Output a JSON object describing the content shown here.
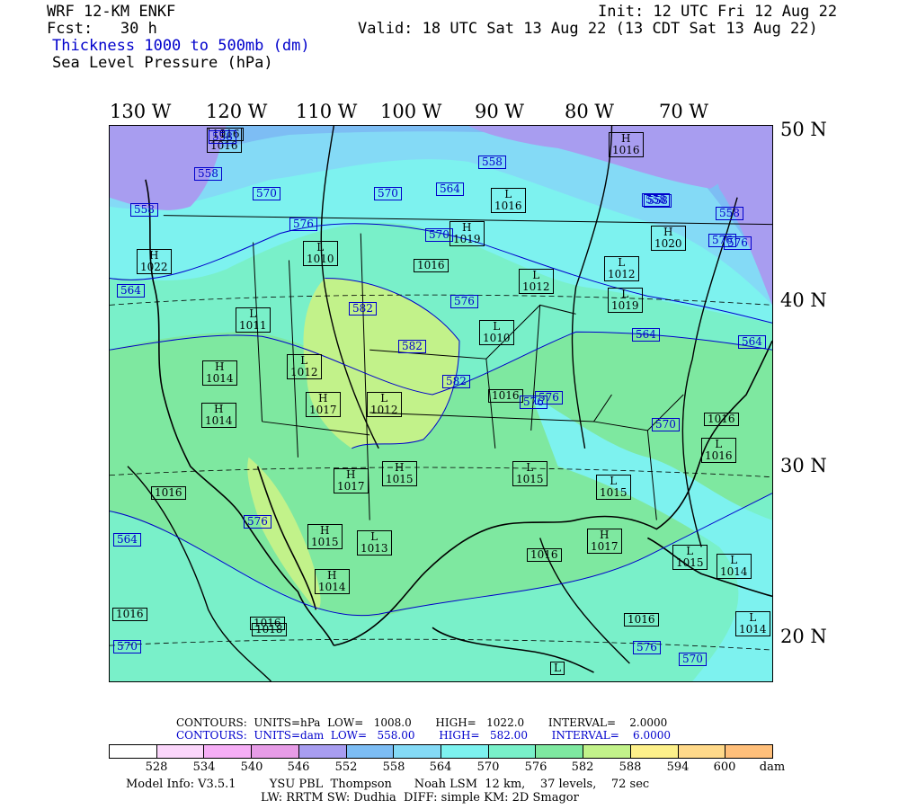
{
  "header": {
    "model": "WRF 12-KM ENKF",
    "fcst": "Fcst:   30 h",
    "thickness_title": "Thickness 1000 to 500mb (dm)",
    "slp_title": "Sea Level Pressure (hPa)",
    "init": "Init: 12 UTC Fri 12 Aug 22",
    "valid": "Valid: 18 UTC Sat 13 Aug 22 (13 CDT Sat 13 Aug 22)"
  },
  "axes": {
    "lon_labels": [
      "130 W",
      "120 W",
      "110 W",
      "100 W",
      "90 W",
      "80 W",
      "70 W"
    ],
    "lat_labels": [
      "50 N",
      "40 N",
      "30 N",
      "20 N"
    ]
  },
  "colors": {
    "c528": "#ffffff",
    "c534": "#fbd6fb",
    "c540": "#f6aef6",
    "c546": "#e79ce7",
    "c552": "#a89df0",
    "c558": "#7dbdf4",
    "c564": "#84daf6",
    "c570": "#7df2ef",
    "c576": "#79f0c9",
    "c582": "#7ee8a0",
    "c588": "#c2f28a",
    "c594": "#fdf08a",
    "c600": "#ffd98a",
    "c606": "#ffbf7a",
    "land_line": "#000000",
    "contour_blue": "#0000cc"
  },
  "pressure_centers": [
    {
      "type": "L",
      "value": "1016",
      "note": "NW"
    },
    {
      "type": "H",
      "value": "1022"
    },
    {
      "type": "L",
      "value": "1010"
    },
    {
      "type": "L",
      "value": "1011"
    },
    {
      "type": "H",
      "value": "1014"
    },
    {
      "type": "H",
      "value": "1014"
    },
    {
      "type": "L",
      "value": "1012"
    },
    {
      "type": "H",
      "value": "1017"
    },
    {
      "type": "L",
      "value": "1012"
    },
    {
      "type": "L",
      "value": "1012"
    },
    {
      "type": "H",
      "value": "1017"
    },
    {
      "type": "H",
      "value": "1015"
    },
    {
      "type": "H",
      "value": "1015"
    },
    {
      "type": "L",
      "value": "1013"
    },
    {
      "type": "H",
      "value": "1014"
    },
    {
      "type": "H",
      "value": "1016"
    },
    {
      "type": "L",
      "value": "1016"
    },
    {
      "type": "H",
      "value": "1019"
    },
    {
      "type": "L",
      "value": "1012"
    },
    {
      "type": "H",
      "value": "1020"
    },
    {
      "type": "L",
      "value": "1019"
    },
    {
      "type": "L",
      "value": "1010"
    },
    {
      "type": "L",
      "value": "1015"
    },
    {
      "type": "L",
      "value": "1015"
    },
    {
      "type": "H",
      "value": "1017"
    },
    {
      "type": "L",
      "value": "1015"
    },
    {
      "type": "L",
      "value": "1014"
    },
    {
      "type": "L",
      "value": "1016"
    },
    {
      "type": "L",
      "value": "1014"
    },
    {
      "type": "L",
      "value": ""
    }
  ],
  "isobar_labels": [
    "1016",
    "1016",
    "1016",
    "1016",
    "1016",
    "1018",
    "1016",
    "1016",
    "1016",
    "1016"
  ],
  "thickness_labels": [
    "558",
    "558",
    "558",
    "570",
    "576",
    "564",
    "576",
    "582",
    "582",
    "582",
    "570",
    "570",
    "564",
    "558",
    "576",
    "576",
    "564",
    "570",
    "576",
    "570",
    "564",
    "558",
    "576",
    "576",
    "576",
    "570",
    "564",
    "558",
    "558"
  ],
  "legend": {
    "contours_black": "CONTOURS:  UNITS=hPa  LOW=   1008.0       HIGH=   1022.0       INTERVAL=    2.0000",
    "contours_blue": "CONTOURS:  UNITS=dam  LOW=   558.00       HIGH=   582.00       INTERVAL=    6.0000",
    "scale_ticks": [
      "528",
      "534",
      "540",
      "546",
      "552",
      "558",
      "564",
      "570",
      "576",
      "582",
      "588",
      "594",
      "600"
    ],
    "unit": "dam",
    "model_info": "Model Info: V3.5.1         YSU PBL  Thompson      Noah LSM  12 km,    37 levels,    72 sec",
    "model_info2": "LW: RRTM SW: Dudhia  DIFF: simple KM: 2D Smagor"
  }
}
